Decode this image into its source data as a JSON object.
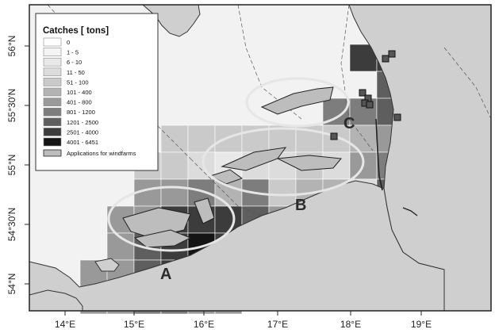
{
  "map": {
    "lat_labels": [
      "56°N",
      "55°30'N",
      "55°N",
      "54°30'N",
      "54°N"
    ],
    "lon_labels": [
      "14°E",
      "15°E",
      "16°E",
      "17°E",
      "18°E",
      "19°E"
    ],
    "zones": [
      "A",
      "B",
      "C"
    ]
  },
  "legend": {
    "title": "Catches [ tons]",
    "classes": [
      {
        "label": "0",
        "color": "#ffffff"
      },
      {
        "label": "1 - 5",
        "color": "#f4f4f4"
      },
      {
        "label": "6 - 10",
        "color": "#e8e8e8"
      },
      {
        "label": "11 - 50",
        "color": "#dcdcdc"
      },
      {
        "label": "51 - 100",
        "color": "#cacaca"
      },
      {
        "label": "101 - 400",
        "color": "#b3b3b3"
      },
      {
        "label": "401 - 800",
        "color": "#999999"
      },
      {
        "label": "801 - 1200",
        "color": "#7d7d7d"
      },
      {
        "label": "1201 - 2500",
        "color": "#5e5e5e"
      },
      {
        "label": "2501 - 4000",
        "color": "#3c3c3c"
      },
      {
        "label": "4001 - 6451",
        "color": "#141414"
      }
    ],
    "windfarm_label": "Applications for windfarms",
    "windfarm_color": "#bdbdbd"
  },
  "colors": {
    "sea": "#f2f2f2",
    "land": "#d0d0d0",
    "frame": "#222222",
    "ellipse": "#e6e6e6"
  }
}
